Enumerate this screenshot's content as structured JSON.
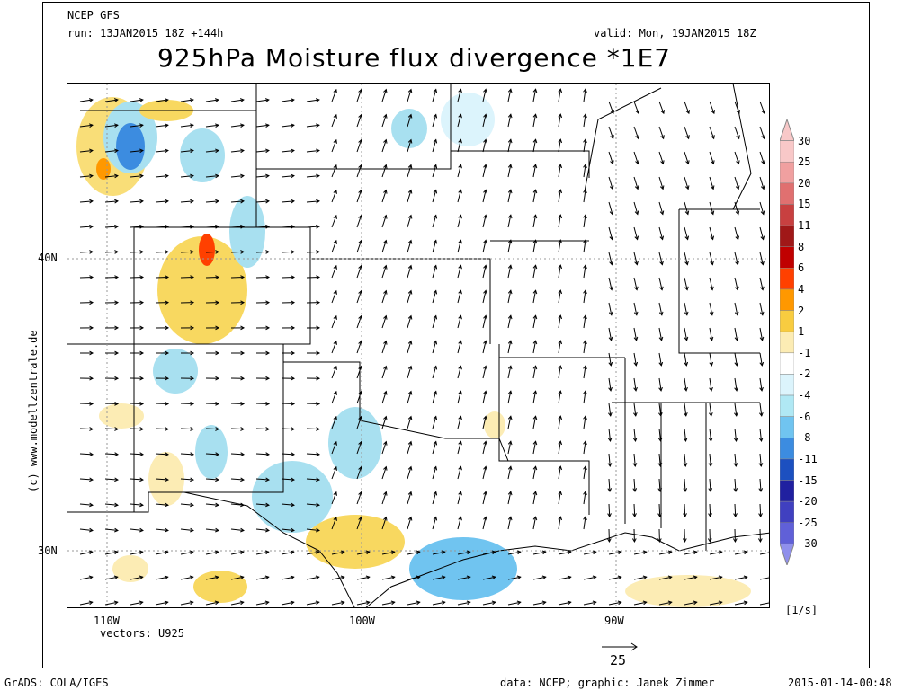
{
  "header": {
    "model": "NCEP GFS",
    "run": "run: 13JAN2015 18Z +144h",
    "valid": "valid: Mon, 19JAN2015 18Z",
    "title": "925hPa Moisture flux divergence *1E7"
  },
  "axes": {
    "lat_labels": [
      "40N",
      "30N"
    ],
    "lon_labels": [
      "110W",
      "100W",
      "90W"
    ]
  },
  "vectors_label": "vectors: U925",
  "vector_scale": "25",
  "units": "[1/s]",
  "copyright": "(c) www.modellzentrale.de",
  "footer": {
    "left": "GrADS: COLA/IGES",
    "center": "data: NCEP; graphic: Janek Zimmer",
    "right": "2015-01-14-00:48"
  },
  "legend": {
    "labels": [
      "30",
      "25",
      "20",
      "15",
      "11",
      "8",
      "6",
      "4",
      "2",
      "1",
      "-1",
      "-2",
      "-4",
      "-6",
      "-8",
      "-11",
      "-15",
      "-20",
      "-25",
      "-30"
    ],
    "colors": [
      "#f8c8c8",
      "#f0a0a0",
      "#e07070",
      "#c84040",
      "#a01818",
      "#c00000",
      "#ff4000",
      "#ff9800",
      "#f8cc40",
      "#fcecb4",
      "#ffffff",
      "#dcf4fc",
      "#b0e8f4",
      "#70c4f0",
      "#3c8ce0",
      "#1c50c0",
      "#2020a0",
      "#4040c0",
      "#6060d8",
      "#9090ec"
    ]
  },
  "map": {
    "background": "#ffffff",
    "positive_color": "#f8d860",
    "negative_color": "#a8e0f0"
  }
}
